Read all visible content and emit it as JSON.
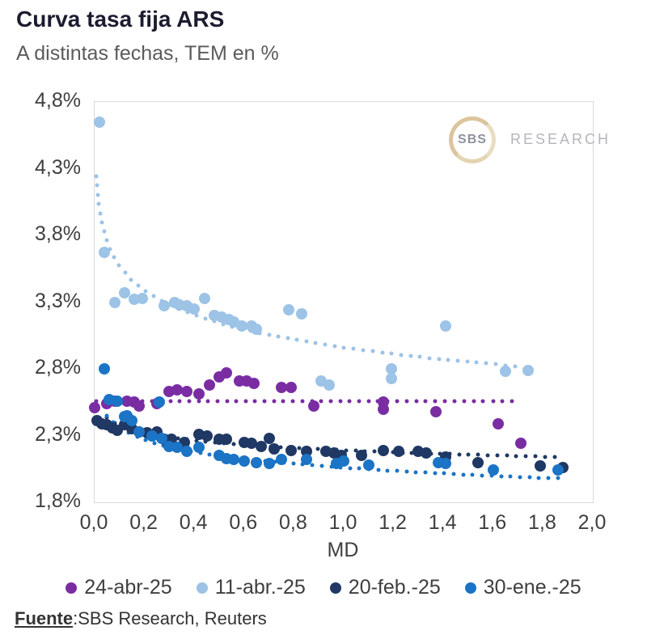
{
  "header": {
    "title": "Curva tasa fija ARS",
    "subtitle": "A distintas fechas, TEM en %"
  },
  "logo": {
    "badge": "SBS",
    "label": "RESEARCH"
  },
  "source": {
    "label": "Fuente",
    "text": ":SBS Research, Reuters"
  },
  "chart_data": {
    "type": "scatter",
    "title": "Curva tasa fija ARS",
    "subtitle": "A distintas fechas, TEM en %",
    "xlabel": "MD",
    "ylabel": "TEM en %",
    "xlim": [
      0.0,
      2.0
    ],
    "ylim": [
      1.8,
      4.8
    ],
    "grid": false,
    "legend_position": "bottom",
    "x_ticks": [
      {
        "value": 0.0,
        "label": "0,0"
      },
      {
        "value": 0.2,
        "label": "0,2"
      },
      {
        "value": 0.4,
        "label": "0,4"
      },
      {
        "value": 0.6,
        "label": "0,6"
      },
      {
        "value": 0.8,
        "label": "0,8"
      },
      {
        "value": 1.0,
        "label": "1,0"
      },
      {
        "value": 1.2,
        "label": "1,2"
      },
      {
        "value": 1.4,
        "label": "1,4"
      },
      {
        "value": 1.6,
        "label": "1,6"
      },
      {
        "value": 1.8,
        "label": "1,8"
      },
      {
        "value": 2.0,
        "label": "2,0"
      }
    ],
    "y_ticks": [
      {
        "value": 4.8,
        "label": "4,8%"
      },
      {
        "value": 4.3,
        "label": "4,3%"
      },
      {
        "value": 3.8,
        "label": "3,8%"
      },
      {
        "value": 3.3,
        "label": "3,3%"
      },
      {
        "value": 2.8,
        "label": "2,8%"
      },
      {
        "value": 2.3,
        "label": "2,3%"
      },
      {
        "value": 1.8,
        "label": "1,8%"
      }
    ],
    "series": [
      {
        "name": "24-abr-25",
        "color": "#7A2DA3",
        "points": [
          [
            0.0,
            2.51
          ],
          [
            0.05,
            2.54
          ],
          [
            0.08,
            2.56
          ],
          [
            0.13,
            2.56
          ],
          [
            0.16,
            2.55
          ],
          [
            0.18,
            2.52
          ],
          [
            0.25,
            2.54
          ],
          [
            0.3,
            2.63
          ],
          [
            0.33,
            2.64
          ],
          [
            0.37,
            2.63
          ],
          [
            0.42,
            2.61
          ],
          [
            0.46,
            2.68
          ],
          [
            0.5,
            2.74
          ],
          [
            0.53,
            2.77
          ],
          [
            0.58,
            2.71
          ],
          [
            0.61,
            2.71
          ],
          [
            0.64,
            2.69
          ],
          [
            0.75,
            2.66
          ],
          [
            0.79,
            2.66
          ],
          [
            0.88,
            2.52
          ],
          [
            1.16,
            2.55
          ],
          [
            1.16,
            2.5
          ],
          [
            1.37,
            2.48
          ],
          [
            1.62,
            2.39
          ],
          [
            1.71,
            2.24
          ]
        ],
        "trend": {
          "type": "log",
          "a": 2.56,
          "b": 0.0,
          "xmin": 0.005,
          "xmax": 1.7
        }
      },
      {
        "name": "11-abr.-25",
        "color": "#9DC3E6",
        "points": [
          [
            0.02,
            4.65
          ],
          [
            0.04,
            3.67
          ],
          [
            0.08,
            3.3
          ],
          [
            0.12,
            3.37
          ],
          [
            0.16,
            3.32
          ],
          [
            0.19,
            3.33
          ],
          [
            0.28,
            3.27
          ],
          [
            0.32,
            3.3
          ],
          [
            0.34,
            3.28
          ],
          [
            0.37,
            3.27
          ],
          [
            0.4,
            3.25
          ],
          [
            0.44,
            3.33
          ],
          [
            0.48,
            3.2
          ],
          [
            0.51,
            3.19
          ],
          [
            0.54,
            3.17
          ],
          [
            0.56,
            3.15
          ],
          [
            0.59,
            3.12
          ],
          [
            0.63,
            3.12
          ],
          [
            0.65,
            3.1
          ],
          [
            0.78,
            3.24
          ],
          [
            0.83,
            3.21
          ],
          [
            0.91,
            2.71
          ],
          [
            0.94,
            2.68
          ],
          [
            1.19,
            2.8
          ],
          [
            1.19,
            2.73
          ],
          [
            1.41,
            3.12
          ],
          [
            1.65,
            2.78
          ],
          [
            1.74,
            2.79
          ]
        ],
        "trend": {
          "type": "log",
          "a": 2.96,
          "b": -0.266,
          "xmin": 0.008,
          "xmax": 1.71
        }
      },
      {
        "name": "20-feb.-25",
        "color": "#1F3864",
        "points": [
          [
            0.01,
            2.41
          ],
          [
            0.03,
            2.39
          ],
          [
            0.05,
            2.38
          ],
          [
            0.07,
            2.36
          ],
          [
            0.09,
            2.34
          ],
          [
            0.12,
            2.38
          ],
          [
            0.15,
            2.35
          ],
          [
            0.18,
            2.33
          ],
          [
            0.21,
            2.32
          ],
          [
            0.25,
            2.33
          ],
          [
            0.28,
            2.27
          ],
          [
            0.31,
            2.27
          ],
          [
            0.36,
            2.25
          ],
          [
            0.42,
            2.31
          ],
          [
            0.45,
            2.3
          ],
          [
            0.5,
            2.27
          ],
          [
            0.53,
            2.27
          ],
          [
            0.6,
            2.25
          ],
          [
            0.63,
            2.24
          ],
          [
            0.67,
            2.22
          ],
          [
            0.7,
            2.28
          ],
          [
            0.72,
            2.2
          ],
          [
            0.79,
            2.19
          ],
          [
            0.85,
            2.18
          ],
          [
            0.93,
            2.18
          ],
          [
            0.96,
            2.17
          ],
          [
            0.99,
            2.15
          ],
          [
            1.07,
            2.15
          ],
          [
            1.16,
            2.19
          ],
          [
            1.22,
            2.18
          ],
          [
            1.3,
            2.18
          ],
          [
            1.33,
            2.17
          ],
          [
            1.41,
            2.14
          ],
          [
            1.54,
            2.1
          ],
          [
            1.79,
            2.07
          ],
          [
            1.88,
            2.06
          ]
        ],
        "trend": {
          "type": "log",
          "a": 2.19,
          "b": -0.082,
          "xmin": 0.05,
          "xmax": 1.88
        }
      },
      {
        "name": "30-ene.-25",
        "color": "#1B74C5",
        "points": [
          [
            0.04,
            2.8
          ],
          [
            0.06,
            2.57
          ],
          [
            0.09,
            2.56
          ],
          [
            0.12,
            2.44
          ],
          [
            0.13,
            2.45
          ],
          [
            0.15,
            2.41
          ],
          [
            0.18,
            2.33
          ],
          [
            0.23,
            2.3
          ],
          [
            0.26,
            2.55
          ],
          [
            0.27,
            2.28
          ],
          [
            0.3,
            2.22
          ],
          [
            0.33,
            2.21
          ],
          [
            0.37,
            2.18
          ],
          [
            0.42,
            2.21
          ],
          [
            0.5,
            2.15
          ],
          [
            0.53,
            2.13
          ],
          [
            0.56,
            2.12
          ],
          [
            0.6,
            2.11
          ],
          [
            0.65,
            2.1
          ],
          [
            0.7,
            2.09
          ],
          [
            0.75,
            2.12
          ],
          [
            0.85,
            2.12
          ],
          [
            0.97,
            2.09
          ],
          [
            1.0,
            2.11
          ],
          [
            1.1,
            2.08
          ],
          [
            1.38,
            2.1
          ],
          [
            1.41,
            2.09
          ],
          [
            1.6,
            2.04
          ],
          [
            1.86,
            2.04
          ]
        ],
        "trend": {
          "type": "log",
          "a": 2.06,
          "b": -0.13,
          "xmin": 0.05,
          "xmax": 1.88
        }
      }
    ]
  }
}
